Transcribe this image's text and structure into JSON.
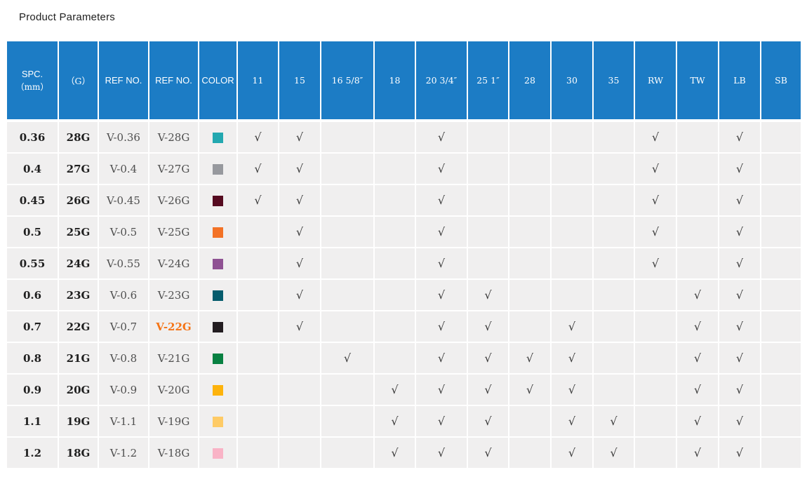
{
  "page": {
    "title": "Product Parameters",
    "background": "#ffffff"
  },
  "table": {
    "check_mark": "√",
    "colors": {
      "header_bg": "#1c7cc5",
      "header_text": "#ffffff",
      "row_bg": "#f0efef",
      "text_primary": "#1f1f1f",
      "text_secondary": "#4f4f4f",
      "check": "#3a3a3a",
      "highlight": "#f57416"
    },
    "header": {
      "spc_line1": "SPC.",
      "spc_line2": "（mm）",
      "gauge": "（G）",
      "ref_no_mm": "REF NO.",
      "ref_no_g": "REF NO.",
      "color": "COLOR",
      "sizes": [
        "11",
        "15",
        "16 5/8″",
        "18",
        "20 3/4″",
        "25 1″",
        "28",
        "30",
        "35",
        "RW",
        "TW",
        "LB",
        "SB"
      ]
    },
    "rows": [
      {
        "spc": "0.36",
        "gauge": "28G",
        "ref_mm": "V-0.36",
        "ref_g": "V-28G",
        "ref_g_highlight": false,
        "swatch": "#23a8b0",
        "checks": [
          1,
          1,
          0,
          0,
          1,
          0,
          0,
          0,
          0,
          1,
          0,
          1,
          0
        ]
      },
      {
        "spc": "0.4",
        "gauge": "27G",
        "ref_mm": "V-0.4",
        "ref_g": "V-27G",
        "ref_g_highlight": false,
        "swatch": "#97999e",
        "checks": [
          1,
          1,
          0,
          0,
          1,
          0,
          0,
          0,
          0,
          1,
          0,
          1,
          0
        ]
      },
      {
        "spc": "0.45",
        "gauge": "26G",
        "ref_mm": "V-0.45",
        "ref_g": "V-26G",
        "ref_g_highlight": false,
        "swatch": "#560b20",
        "checks": [
          1,
          1,
          0,
          0,
          1,
          0,
          0,
          0,
          0,
          1,
          0,
          1,
          0
        ]
      },
      {
        "spc": "0.5",
        "gauge": "25G",
        "ref_mm": "V-0.5",
        "ref_g": "V-25G",
        "ref_g_highlight": false,
        "swatch": "#f37226",
        "checks": [
          0,
          1,
          0,
          0,
          1,
          0,
          0,
          0,
          0,
          1,
          0,
          1,
          0
        ]
      },
      {
        "spc": "0.55",
        "gauge": "24G",
        "ref_mm": "V-0.55",
        "ref_g": "V-24G",
        "ref_g_highlight": false,
        "swatch": "#8f5293",
        "checks": [
          0,
          1,
          0,
          0,
          1,
          0,
          0,
          0,
          0,
          1,
          0,
          1,
          0
        ]
      },
      {
        "spc": "0.6",
        "gauge": "23G",
        "ref_mm": "V-0.6",
        "ref_g": "V-23G",
        "ref_g_highlight": false,
        "swatch": "#055c6d",
        "checks": [
          0,
          1,
          0,
          0,
          1,
          1,
          0,
          0,
          0,
          0,
          1,
          1,
          0
        ]
      },
      {
        "spc": "0.7",
        "gauge": "22G",
        "ref_mm": "V-0.7",
        "ref_g": "V-22G",
        "ref_g_highlight": true,
        "swatch": "#231d21",
        "checks": [
          0,
          1,
          0,
          0,
          1,
          1,
          0,
          1,
          0,
          0,
          1,
          1,
          0
        ]
      },
      {
        "spc": "0.8",
        "gauge": "21G",
        "ref_mm": "V-0.8",
        "ref_g": "V-21G",
        "ref_g_highlight": false,
        "swatch": "#088142",
        "checks": [
          0,
          0,
          1,
          0,
          1,
          1,
          1,
          1,
          0,
          0,
          1,
          1,
          0
        ]
      },
      {
        "spc": "0.9",
        "gauge": "20G",
        "ref_mm": "V-0.9",
        "ref_g": "V-20G",
        "ref_g_highlight": false,
        "swatch": "#fdb30c",
        "checks": [
          0,
          0,
          0,
          1,
          1,
          1,
          1,
          1,
          0,
          0,
          1,
          1,
          0
        ]
      },
      {
        "spc": "1.1",
        "gauge": "19G",
        "ref_mm": "V-1.1",
        "ref_g": "V-19G",
        "ref_g_highlight": false,
        "swatch": "#fecb66",
        "checks": [
          0,
          0,
          0,
          1,
          1,
          1,
          0,
          1,
          1,
          0,
          1,
          1,
          0
        ]
      },
      {
        "spc": "1.2",
        "gauge": "18G",
        "ref_mm": "V-1.2",
        "ref_g": "V-18G",
        "ref_g_highlight": false,
        "swatch": "#f9b3c6",
        "checks": [
          0,
          0,
          0,
          1,
          1,
          1,
          0,
          1,
          1,
          0,
          1,
          1,
          0
        ]
      }
    ]
  }
}
